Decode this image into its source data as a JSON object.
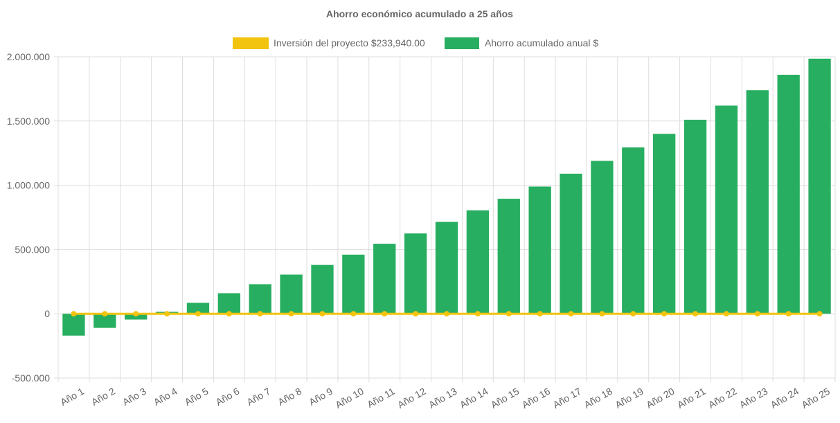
{
  "chart_data": {
    "type": "bar",
    "title": "Ahorro económico acumulado a 25 años",
    "categories": [
      "Año 1",
      "Año 2",
      "Año 3",
      "Año 4",
      "Año 5",
      "Año 6",
      "Año 7",
      "Año 8",
      "Año 9",
      "Año 10",
      "Año 11",
      "Año 12",
      "Año 13",
      "Año 14",
      "Año 15",
      "Año 16",
      "Año 17",
      "Año 18",
      "Año 19",
      "Año 20",
      "Año 21",
      "Año 22",
      "Año 23",
      "Año 24",
      "Año 25"
    ],
    "ylim": [
      -500000,
      2000000
    ],
    "yticks": [
      2000000,
      1500000,
      1000000,
      500000,
      0,
      -500000
    ],
    "ytick_labels": [
      "2.000.000",
      "1.500.000",
      "1.000.000",
      "500.000",
      "0",
      "-500.000"
    ],
    "grid": true,
    "legend_position": "top",
    "series": [
      {
        "name": "Inversión del proyecto $233,940.00",
        "type": "line",
        "color": "#f2c40f",
        "values": [
          0,
          0,
          0,
          0,
          0,
          0,
          0,
          0,
          0,
          0,
          0,
          0,
          0,
          0,
          0,
          0,
          0,
          0,
          0,
          0,
          0,
          0,
          0,
          0,
          0
        ]
      },
      {
        "name": "Ahorro acumulado anual $",
        "type": "bar",
        "color": "#27ae60",
        "values": [
          -170000,
          -110000,
          -45000,
          15000,
          85000,
          160000,
          230000,
          305000,
          380000,
          460000,
          545000,
          625000,
          715000,
          805000,
          895000,
          990000,
          1090000,
          1190000,
          1295000,
          1400000,
          1510000,
          1620000,
          1740000,
          1860000,
          1985000
        ]
      }
    ]
  }
}
